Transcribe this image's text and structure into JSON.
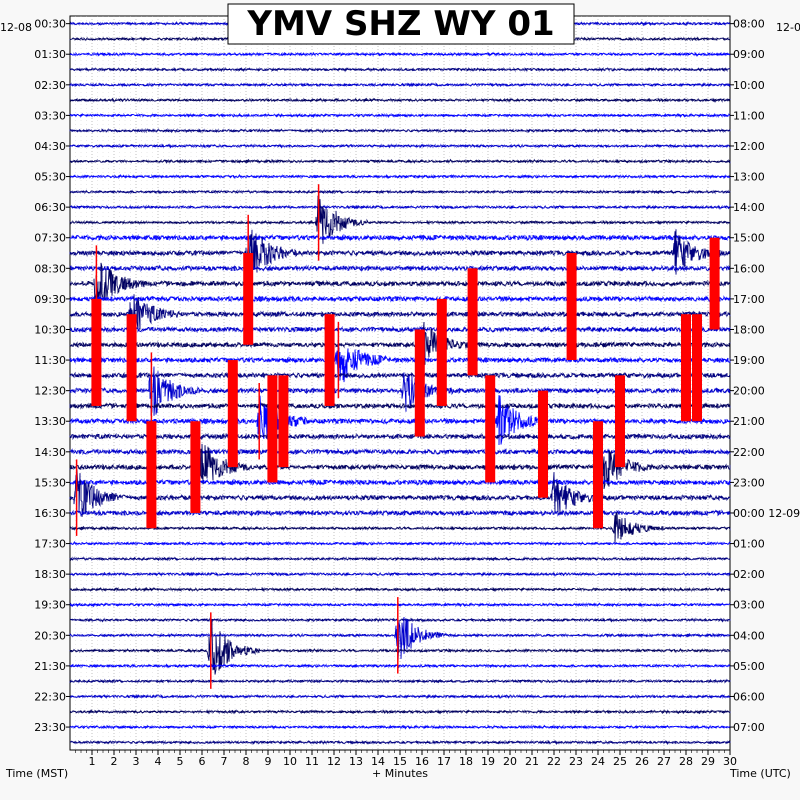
{
  "chart_data": {
    "type": "line",
    "title": "YMV SHZ WY 01",
    "left_date": "12-08",
    "right_date_top": "12-0",
    "right_date_mid": "12-09",
    "xlabel": "+ Minutes",
    "left_axis_label": "Time (MST)",
    "right_axis_label": "Time (UTC)",
    "xlim": [
      0,
      30
    ],
    "x_ticks": [
      "1",
      "2",
      "3",
      "4",
      "5",
      "6",
      "7",
      "8",
      "9",
      "10",
      "11",
      "12",
      "13",
      "14",
      "15",
      "16",
      "17",
      "18",
      "19",
      "20",
      "21",
      "22",
      "23",
      "24",
      "25",
      "26",
      "27",
      "28",
      "29",
      "30"
    ],
    "left_ticks": [
      "00:30",
      "01:30",
      "02:30",
      "03:30",
      "04:30",
      "05:30",
      "06:30",
      "07:30",
      "08:30",
      "09:30",
      "10:30",
      "11:30",
      "12:30",
      "13:30",
      "14:30",
      "15:30",
      "16:30",
      "17:30",
      "18:30",
      "19:30",
      "20:30",
      "21:30",
      "22:30",
      "23:30"
    ],
    "right_ticks": [
      "08:00",
      "09:00",
      "10:00",
      "11:00",
      "12:00",
      "13:00",
      "14:00",
      "15:00",
      "16:00",
      "17:00",
      "18:00",
      "19:00",
      "20:00",
      "21:00",
      "22:00",
      "23:00",
      "00:00",
      "01:00",
      "02:00",
      "03:00",
      "04:00",
      "05:00",
      "06:00",
      "07:00"
    ],
    "trace_colors": [
      "#0000cc",
      "#000060",
      "#0000ff",
      "#000080"
    ],
    "clip_color": "#ff0000",
    "grid": "dotted",
    "line_count": 48,
    "events": [
      {
        "line": 13,
        "minute": 11.3,
        "amp": 1.3
      },
      {
        "line": 15,
        "minute": 8.1,
        "amp": 1.4
      },
      {
        "line": 15,
        "minute": 27.5,
        "amp": 1.0
      },
      {
        "line": 17,
        "minute": 1.2,
        "amp": 1.2
      },
      {
        "line": 19,
        "minute": 2.8,
        "amp": 1.0
      },
      {
        "line": 21,
        "minute": 16.0,
        "amp": 1.0
      },
      {
        "line": 22,
        "minute": 12.2,
        "amp": 1.2
      },
      {
        "line": 24,
        "minute": 3.7,
        "amp": 1.2
      },
      {
        "line": 24,
        "minute": 15.2,
        "amp": 0.9
      },
      {
        "line": 26,
        "minute": 8.6,
        "amp": 1.3
      },
      {
        "line": 26,
        "minute": 19.5,
        "amp": 1.1
      },
      {
        "line": 29,
        "minute": 6.0,
        "amp": 1.1
      },
      {
        "line": 29,
        "minute": 24.1,
        "amp": 1.3
      },
      {
        "line": 31,
        "minute": 0.3,
        "amp": 1.2
      },
      {
        "line": 31,
        "minute": 22.0,
        "amp": 1.0
      },
      {
        "line": 33,
        "minute": 24.8,
        "amp": 0.7
      },
      {
        "line": 40,
        "minute": 14.9,
        "amp": 1.2
      },
      {
        "line": 41,
        "minute": 6.4,
        "amp": 1.4
      }
    ],
    "clipped_bars": [
      {
        "minute": 1.2,
        "start_line": 18.0,
        "end_line": 25.0
      },
      {
        "minute": 2.8,
        "start_line": 19.0,
        "end_line": 26.0
      },
      {
        "minute": 3.7,
        "start_line": 26.0,
        "end_line": 33.0
      },
      {
        "minute": 5.7,
        "start_line": 26.0,
        "end_line": 32.0
      },
      {
        "minute": 7.4,
        "start_line": 22.0,
        "end_line": 29.0
      },
      {
        "minute": 8.1,
        "start_line": 15.0,
        "end_line": 21.0
      },
      {
        "minute": 9.2,
        "start_line": 23.0,
        "end_line": 30.0
      },
      {
        "minute": 9.7,
        "start_line": 23.0,
        "end_line": 29.0
      },
      {
        "minute": 11.8,
        "start_line": 19.0,
        "end_line": 25.0
      },
      {
        "minute": 15.9,
        "start_line": 20.0,
        "end_line": 27.0
      },
      {
        "minute": 16.9,
        "start_line": 18.0,
        "end_line": 25.0
      },
      {
        "minute": 18.3,
        "start_line": 16.0,
        "end_line": 23.0
      },
      {
        "minute": 19.1,
        "start_line": 23.0,
        "end_line": 30.0
      },
      {
        "minute": 21.5,
        "start_line": 24.0,
        "end_line": 31.0
      },
      {
        "minute": 22.8,
        "start_line": 15.0,
        "end_line": 22.0
      },
      {
        "minute": 24.0,
        "start_line": 26.0,
        "end_line": 33.0
      },
      {
        "minute": 25.0,
        "start_line": 23.0,
        "end_line": 29.0
      },
      {
        "minute": 28.0,
        "start_line": 19.0,
        "end_line": 26.0
      },
      {
        "minute": 28.5,
        "start_line": 19.0,
        "end_line": 26.0
      },
      {
        "minute": 29.3,
        "start_line": 14.0,
        "end_line": 20.0
      }
    ]
  }
}
